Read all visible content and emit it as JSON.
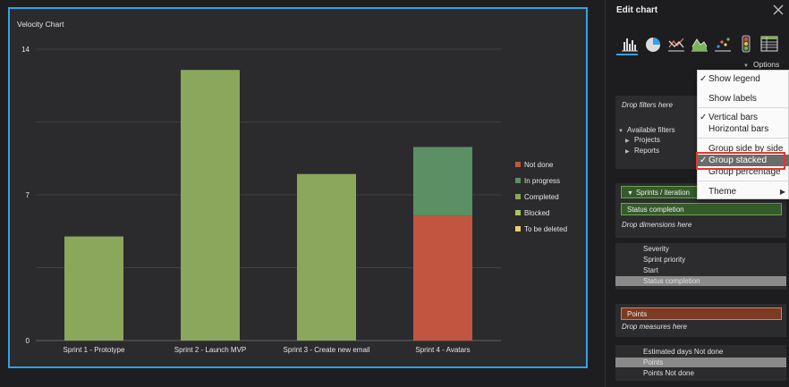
{
  "chart": {
    "title": "Velocity Chart"
  },
  "chart_data": {
    "type": "bar",
    "stacked": true,
    "title": "Velocity Chart",
    "categories": [
      "Sprint 1 - Prototype",
      "Sprint 2 - Launch MVP",
      "Sprint 3 - Create new email",
      "Sprint 4 - Avatars"
    ],
    "ylim": [
      0,
      14
    ],
    "yticks": [
      0,
      7,
      14
    ],
    "series": [
      {
        "name": "Not done",
        "color": "#c2553f",
        "values": [
          0,
          0,
          0,
          6
        ]
      },
      {
        "name": "In progress",
        "color": "#5b8f64",
        "values": [
          0,
          0,
          0,
          3.3
        ]
      },
      {
        "name": "Completed",
        "color": "#8ba75b",
        "values": [
          5,
          13,
          8,
          0
        ]
      },
      {
        "name": "Blocked",
        "color": "#a4c95f",
        "values": [
          0,
          0,
          0,
          0
        ]
      },
      {
        "name": "To be deleted",
        "color": "#e9d16a",
        "values": [
          0,
          0,
          0,
          0
        ]
      }
    ],
    "legend_position": "right"
  },
  "panel": {
    "title": "Edit chart",
    "options_label": "Options",
    "chart_types": [
      "bar-chart-icon",
      "pie-chart-icon",
      "line-chart-icon",
      "area-chart-icon",
      "scatter-chart-icon",
      "traffic-light-icon",
      "table-icon"
    ],
    "filters": {
      "drop_hint": "Drop filters here",
      "available_label": "Available filters",
      "items": [
        "Projects",
        "Reports"
      ]
    },
    "dimensions": {
      "pill_1": "Sprints / iteration",
      "pill_2": "Status completion",
      "drop_hint": "Drop dimensions here"
    },
    "dimension_list": [
      "Severity",
      "Sprint priority",
      "Start",
      "Status completion"
    ],
    "measures": {
      "pill": "Points",
      "drop_hint": "Drop measures here"
    },
    "measure_list": [
      "Estimated days Not done",
      "Points",
      "Points Not done"
    ]
  },
  "menu": {
    "items": [
      {
        "label": "Show legend",
        "checked": true
      },
      {
        "label": "Show labels",
        "checked": false
      },
      {
        "label": "Vertical bars",
        "checked": true
      },
      {
        "label": "Horizontal bars",
        "checked": false
      },
      {
        "label": "Group side by side",
        "checked": false
      },
      {
        "label": "Group stacked",
        "checked": true
      },
      {
        "label": "Group percentage",
        "checked": false
      },
      {
        "label": "Theme",
        "checked": false
      }
    ]
  },
  "colors": {
    "accent": "#2fa3e6",
    "annotation": "#e03a2b"
  }
}
